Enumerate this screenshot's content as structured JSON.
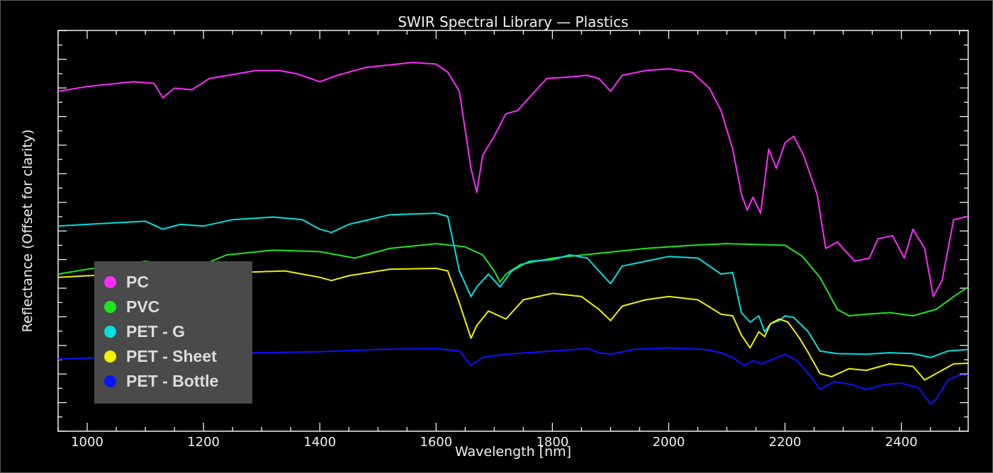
{
  "chart_data": {
    "type": "line",
    "title": "SWIR Spectral Library — Plastics",
    "xlabel": "Wavelength [nm]",
    "ylabel": "Reflectance (Offset for clarity)",
    "xlim": [
      950,
      2515
    ],
    "x_ticks": [
      1000,
      1200,
      1400,
      1600,
      1800,
      2000,
      2200,
      2400
    ],
    "y_ticks_labeled": false,
    "grid": false,
    "legend_position": "bottom-left",
    "series": [
      {
        "name": "PC",
        "color": "#ff2bff",
        "points": [
          [
            950,
            0.76
          ],
          [
            1000,
            0.775
          ],
          [
            1080,
            0.79
          ],
          [
            1115,
            0.785
          ],
          [
            1130,
            0.74
          ],
          [
            1150,
            0.77
          ],
          [
            1180,
            0.765
          ],
          [
            1210,
            0.8
          ],
          [
            1290,
            0.825
          ],
          [
            1330,
            0.825
          ],
          [
            1360,
            0.815
          ],
          [
            1400,
            0.79
          ],
          [
            1430,
            0.81
          ],
          [
            1480,
            0.835
          ],
          [
            1560,
            0.85
          ],
          [
            1600,
            0.845
          ],
          [
            1620,
            0.82
          ],
          [
            1640,
            0.76
          ],
          [
            1660,
            0.52
          ],
          [
            1670,
            0.445
          ],
          [
            1680,
            0.56
          ],
          [
            1700,
            0.62
          ],
          [
            1720,
            0.69
          ],
          [
            1740,
            0.7
          ],
          [
            1755,
            0.73
          ],
          [
            1770,
            0.76
          ],
          [
            1790,
            0.8
          ],
          [
            1830,
            0.805
          ],
          [
            1860,
            0.81
          ],
          [
            1880,
            0.8
          ],
          [
            1900,
            0.76
          ],
          [
            1920,
            0.81
          ],
          [
            1960,
            0.825
          ],
          [
            2000,
            0.83
          ],
          [
            2040,
            0.82
          ],
          [
            2070,
            0.77
          ],
          [
            2090,
            0.7
          ],
          [
            2110,
            0.58
          ],
          [
            2125,
            0.44
          ],
          [
            2135,
            0.39
          ],
          [
            2145,
            0.43
          ],
          [
            2158,
            0.38
          ],
          [
            2172,
            0.58
          ],
          [
            2185,
            0.52
          ],
          [
            2200,
            0.6
          ],
          [
            2215,
            0.62
          ],
          [
            2232,
            0.56
          ],
          [
            2255,
            0.44
          ],
          [
            2270,
            0.27
          ],
          [
            2290,
            0.29
          ],
          [
            2320,
            0.23
          ],
          [
            2345,
            0.24
          ],
          [
            2360,
            0.3
          ],
          [
            2385,
            0.31
          ],
          [
            2405,
            0.24
          ],
          [
            2420,
            0.33
          ],
          [
            2440,
            0.27
          ],
          [
            2455,
            0.12
          ],
          [
            2470,
            0.17
          ],
          [
            2490,
            0.36
          ],
          [
            2515,
            0.37
          ]
        ]
      },
      {
        "name": "PVC",
        "color": "#1ee61e",
        "points": [
          [
            950,
            0.19
          ],
          [
            1000,
            0.205
          ],
          [
            1100,
            0.23
          ],
          [
            1160,
            0.215
          ],
          [
            1200,
            0.22
          ],
          [
            1240,
            0.25
          ],
          [
            1320,
            0.265
          ],
          [
            1400,
            0.26
          ],
          [
            1460,
            0.24
          ],
          [
            1520,
            0.27
          ],
          [
            1600,
            0.285
          ],
          [
            1650,
            0.275
          ],
          [
            1680,
            0.25
          ],
          [
            1700,
            0.2
          ],
          [
            1710,
            0.165
          ],
          [
            1720,
            0.19
          ],
          [
            1745,
            0.22
          ],
          [
            1800,
            0.24
          ],
          [
            1880,
            0.255
          ],
          [
            1960,
            0.27
          ],
          [
            2040,
            0.28
          ],
          [
            2100,
            0.285
          ],
          [
            2160,
            0.282
          ],
          [
            2200,
            0.28
          ],
          [
            2230,
            0.245
          ],
          [
            2260,
            0.18
          ],
          [
            2290,
            0.08
          ],
          [
            2310,
            0.06
          ],
          [
            2340,
            0.065
          ],
          [
            2380,
            0.07
          ],
          [
            2420,
            0.06
          ],
          [
            2460,
            0.08
          ],
          [
            2490,
            0.12
          ],
          [
            2515,
            0.15
          ]
        ]
      },
      {
        "name": "PET - G",
        "color": "#00e0e0",
        "points": [
          [
            950,
            0.34
          ],
          [
            1000,
            0.345
          ],
          [
            1100,
            0.355
          ],
          [
            1130,
            0.33
          ],
          [
            1160,
            0.345
          ],
          [
            1200,
            0.34
          ],
          [
            1250,
            0.36
          ],
          [
            1320,
            0.368
          ],
          [
            1370,
            0.36
          ],
          [
            1400,
            0.33
          ],
          [
            1420,
            0.32
          ],
          [
            1450,
            0.345
          ],
          [
            1520,
            0.375
          ],
          [
            1600,
            0.38
          ],
          [
            1620,
            0.37
          ],
          [
            1640,
            0.2
          ],
          [
            1660,
            0.12
          ],
          [
            1670,
            0.15
          ],
          [
            1690,
            0.19
          ],
          [
            1710,
            0.15
          ],
          [
            1730,
            0.2
          ],
          [
            1760,
            0.23
          ],
          [
            1800,
            0.235
          ],
          [
            1830,
            0.25
          ],
          [
            1860,
            0.24
          ],
          [
            1880,
            0.2
          ],
          [
            1900,
            0.16
          ],
          [
            1920,
            0.215
          ],
          [
            1960,
            0.23
          ],
          [
            2000,
            0.245
          ],
          [
            2050,
            0.24
          ],
          [
            2090,
            0.19
          ],
          [
            2110,
            0.195
          ],
          [
            2125,
            0.07
          ],
          [
            2140,
            0.04
          ],
          [
            2155,
            0.06
          ],
          [
            2165,
            0.01
          ],
          [
            2175,
            0.035
          ],
          [
            2190,
            0.045
          ],
          [
            2200,
            0.06
          ],
          [
            2215,
            0.055
          ],
          [
            2240,
            0.01
          ],
          [
            2260,
            -0.05
          ],
          [
            2290,
            -0.058
          ],
          [
            2340,
            -0.06
          ],
          [
            2380,
            -0.055
          ],
          [
            2420,
            -0.058
          ],
          [
            2450,
            -0.07
          ],
          [
            2480,
            -0.05
          ],
          [
            2515,
            -0.045
          ]
        ]
      },
      {
        "name": "PET - Sheet",
        "color": "#f0f000",
        "points": [
          [
            950,
            0.18
          ],
          [
            1000,
            0.185
          ],
          [
            1100,
            0.192
          ],
          [
            1130,
            0.168
          ],
          [
            1160,
            0.18
          ],
          [
            1200,
            0.178
          ],
          [
            1260,
            0.195
          ],
          [
            1340,
            0.2
          ],
          [
            1400,
            0.18
          ],
          [
            1420,
            0.17
          ],
          [
            1450,
            0.185
          ],
          [
            1520,
            0.205
          ],
          [
            1600,
            0.208
          ],
          [
            1620,
            0.2
          ],
          [
            1640,
            0.1
          ],
          [
            1660,
            -0.01
          ],
          [
            1670,
            0.03
          ],
          [
            1690,
            0.075
          ],
          [
            1720,
            0.05
          ],
          [
            1750,
            0.11
          ],
          [
            1800,
            0.13
          ],
          [
            1850,
            0.12
          ],
          [
            1880,
            0.08
          ],
          [
            1900,
            0.045
          ],
          [
            1920,
            0.09
          ],
          [
            1960,
            0.11
          ],
          [
            2000,
            0.12
          ],
          [
            2050,
            0.11
          ],
          [
            2090,
            0.065
          ],
          [
            2110,
            0.06
          ],
          [
            2125,
            0.0
          ],
          [
            2140,
            -0.04
          ],
          [
            2155,
            0.01
          ],
          [
            2165,
            -0.005
          ],
          [
            2175,
            0.035
          ],
          [
            2190,
            0.05
          ],
          [
            2205,
            0.04
          ],
          [
            2225,
            -0.01
          ],
          [
            2240,
            -0.055
          ],
          [
            2260,
            -0.12
          ],
          [
            2280,
            -0.13
          ],
          [
            2310,
            -0.105
          ],
          [
            2340,
            -0.11
          ],
          [
            2380,
            -0.09
          ],
          [
            2420,
            -0.098
          ],
          [
            2440,
            -0.14
          ],
          [
            2460,
            -0.12
          ],
          [
            2490,
            -0.09
          ],
          [
            2515,
            -0.088
          ]
        ]
      },
      {
        "name": "PET - Bottle",
        "color": "#0a14ff",
        "points": [
          [
            950,
            -0.075
          ],
          [
            1000,
            -0.072
          ],
          [
            1100,
            -0.062
          ],
          [
            1200,
            -0.058
          ],
          [
            1300,
            -0.055
          ],
          [
            1400,
            -0.052
          ],
          [
            1500,
            -0.045
          ],
          [
            1600,
            -0.042
          ],
          [
            1640,
            -0.05
          ],
          [
            1660,
            -0.095
          ],
          [
            1680,
            -0.07
          ],
          [
            1720,
            -0.06
          ],
          [
            1800,
            -0.05
          ],
          [
            1860,
            -0.042
          ],
          [
            1880,
            -0.055
          ],
          [
            1900,
            -0.06
          ],
          [
            1940,
            -0.045
          ],
          [
            2000,
            -0.04
          ],
          [
            2060,
            -0.045
          ],
          [
            2090,
            -0.055
          ],
          [
            2110,
            -0.07
          ],
          [
            2130,
            -0.095
          ],
          [
            2145,
            -0.08
          ],
          [
            2160,
            -0.09
          ],
          [
            2180,
            -0.075
          ],
          [
            2200,
            -0.06
          ],
          [
            2220,
            -0.08
          ],
          [
            2245,
            -0.13
          ],
          [
            2260,
            -0.17
          ],
          [
            2285,
            -0.145
          ],
          [
            2315,
            -0.155
          ],
          [
            2340,
            -0.17
          ],
          [
            2370,
            -0.155
          ],
          [
            2400,
            -0.15
          ],
          [
            2430,
            -0.165
          ],
          [
            2450,
            -0.215
          ],
          [
            2460,
            -0.2
          ],
          [
            2480,
            -0.14
          ],
          [
            2500,
            -0.125
          ],
          [
            2515,
            -0.125
          ]
        ]
      }
    ]
  }
}
